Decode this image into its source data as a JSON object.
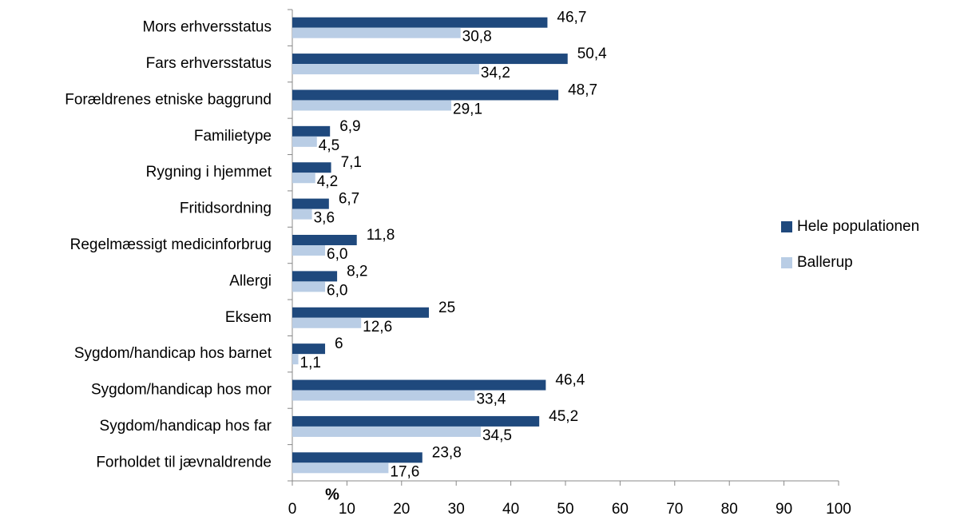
{
  "chart_data": {
    "type": "barh",
    "x_label": "%",
    "categories": [
      "Mors erhversstatus",
      "Fars erhversstatus",
      "Forældrenes etniske baggrund",
      "Familietype",
      "Rygning i hjemmet",
      "Fritidsordning",
      "Regelmæssigt medicinforbrug",
      "Allergi",
      "Eksem",
      "Sygdom/handicap hos barnet",
      "Sygdom/handicap hos mor",
      "Sygdom/handicap hos far",
      "Forholdet til jævnaldrende"
    ],
    "series": [
      {
        "name": "Hele populationen",
        "color": "#1f497d",
        "values": [
          46.7,
          50.4,
          48.7,
          6.9,
          7.1,
          6.7,
          11.8,
          8.2,
          25,
          6,
          46.4,
          45.2,
          23.8
        ],
        "value_labels": [
          "46,7",
          "50,4",
          "48,7",
          "6,9",
          "7,1",
          "6,7",
          "11,8",
          "8,2",
          "25",
          "6",
          "46,4",
          "45,2",
          "23,8"
        ]
      },
      {
        "name": "Ballerup",
        "color": "#b9cde5",
        "values": [
          30.8,
          34.2,
          29.1,
          4.5,
          4.2,
          3.6,
          6.0,
          6.0,
          12.6,
          1.1,
          33.4,
          34.5,
          17.6
        ],
        "value_labels": [
          "30,8",
          "34,2",
          "29,1",
          "4,5",
          "4,2",
          "3,6",
          "6,0",
          "6,0",
          "12,6",
          "1,1",
          "33,4",
          "34,5",
          "17,6"
        ]
      }
    ],
    "xlim": [
      0,
      100
    ],
    "xticks": [
      0,
      10,
      20,
      30,
      40,
      50,
      60,
      70,
      80,
      90,
      100
    ],
    "legend": "right"
  }
}
